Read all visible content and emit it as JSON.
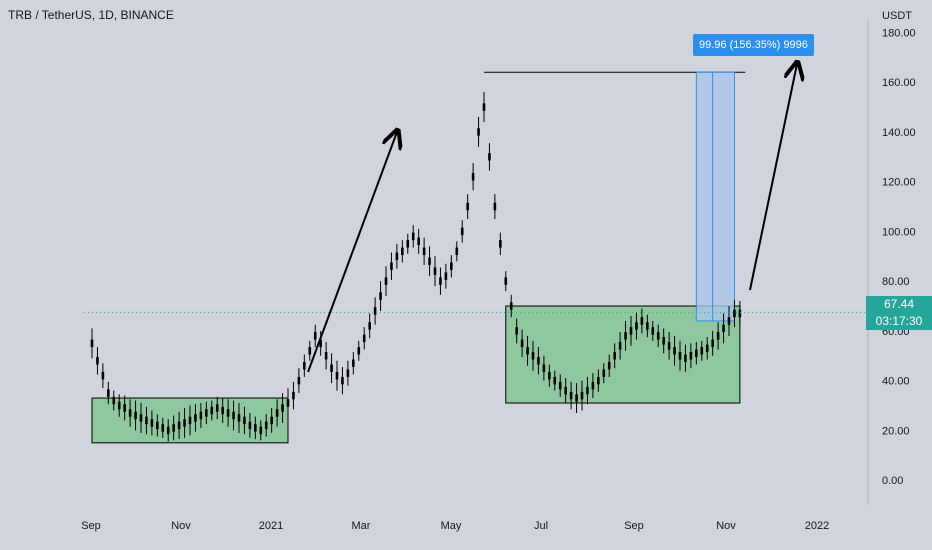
{
  "header": {
    "symbol": "TRB / TetherUS, 1D, BINANCE",
    "unit": "USDT"
  },
  "price_tag": {
    "price": "67.44",
    "countdown": "03:17:30"
  },
  "measure": {
    "label": "99.96 (156.35%) 9996"
  },
  "colors": {
    "background": "#d1d4dc",
    "candle": "#000000",
    "range_box": "#8fc79f",
    "projection": "#a9c6e8",
    "price_tag": "#26a69a",
    "measure": "#2a8fef"
  },
  "chart_data": {
    "type": "line",
    "title": "",
    "xlabel": "",
    "ylabel": "",
    "ylim": [
      -10,
      185
    ],
    "yticks": [
      180,
      160,
      140,
      120,
      100,
      80,
      60,
      40,
      20,
      0
    ],
    "ytick_labels": [
      "180.00",
      "160.00",
      "140.00",
      "120.00",
      "100.00",
      "80.00",
      "60.00",
      "40.00",
      "20.00",
      "0.00"
    ],
    "xticks": [
      "Sep",
      "Nov",
      "2021",
      "Mar",
      "May",
      "Jul",
      "Sep",
      "Nov",
      "2022"
    ],
    "series": [
      {
        "values": [
          55,
          48,
          42,
          35,
          32,
          30,
          29,
          27,
          26,
          25,
          24,
          23,
          22,
          21,
          20,
          21,
          22,
          23,
          24,
          25,
          26,
          27,
          28,
          29,
          28,
          27,
          26,
          25,
          24,
          22,
          21,
          20,
          22,
          24,
          27,
          29,
          31,
          34,
          40,
          46,
          52,
          58,
          55,
          50,
          45,
          42,
          40,
          43,
          47,
          52,
          57,
          62,
          68,
          74,
          80,
          86,
          90,
          92,
          95,
          98,
          96,
          92,
          88,
          84,
          80,
          82,
          86,
          92,
          100,
          110,
          122,
          140,
          150,
          130,
          110,
          95,
          80,
          70,
          60,
          55,
          52,
          50,
          48,
          45,
          42,
          40,
          38,
          36,
          34,
          33,
          34,
          36,
          38,
          40,
          43,
          46,
          50,
          54,
          58,
          60,
          62,
          64,
          62,
          60,
          58,
          56,
          54,
          52,
          50,
          49,
          50,
          51,
          52,
          53,
          55,
          58,
          61,
          64,
          67,
          67
        ]
      }
    ],
    "annotations": {
      "range_box_1": {
        "from_index": 0,
        "to_index": 36,
        "low": 15,
        "high": 33
      },
      "range_box_2": {
        "from_index": 76,
        "to_index": 119,
        "low": 31,
        "high": 70
      },
      "projection": {
        "from_index": 111,
        "to_index": 118,
        "low": 64,
        "high": 164
      },
      "top_line": {
        "from_index": 72,
        "to_index": 120,
        "value": 164
      }
    }
  }
}
